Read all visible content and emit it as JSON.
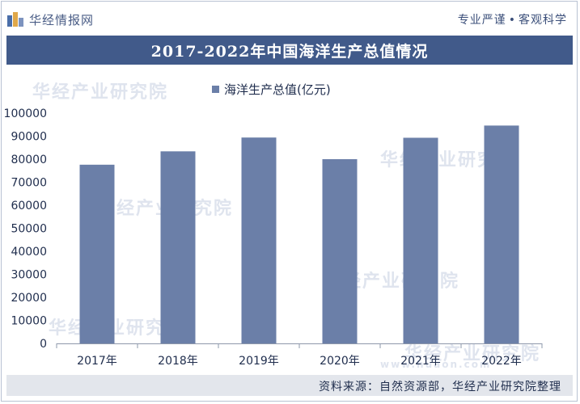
{
  "header": {
    "brand_name": "华经情报网",
    "slogan_left": "专业严谨",
    "slogan_right": "客观科学"
  },
  "watermarks": {
    "text": "华经产业研究院",
    "url": "www.huaon.com"
  },
  "chart_data": {
    "type": "bar",
    "title": "2017-2022年中国海洋生产总值情况",
    "categories": [
      "2017年",
      "2018年",
      "2019年",
      "2020年",
      "2021年",
      "2022年"
    ],
    "series": [
      {
        "name": "海洋生产总值(亿元)",
        "values": [
          77600,
          83400,
          89400,
          80000,
          89300,
          94600
        ]
      }
    ],
    "yticks": [
      0,
      10000,
      20000,
      30000,
      40000,
      50000,
      60000,
      70000,
      80000,
      90000,
      100000
    ],
    "ylim": [
      0,
      100000
    ],
    "xlabel": "",
    "ylabel": "",
    "legend_position": "top-center",
    "bar_color": "#6b7fa8",
    "grid": false
  },
  "footer": {
    "source": "资料来源：自然资源部，华经产业研究院整理"
  }
}
